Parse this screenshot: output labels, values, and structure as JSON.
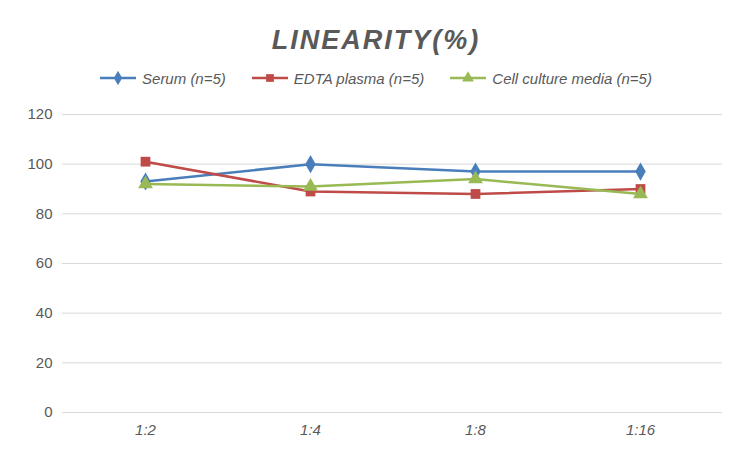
{
  "chart_data": {
    "type": "line",
    "title": "LINEARITY(%)",
    "categories": [
      "1:2",
      "1:4",
      "1:8",
      "1:16"
    ],
    "series": [
      {
        "name": "Serum (n=5)",
        "color": "#4a7ebb",
        "marker": "diamond",
        "values": [
          93,
          100,
          97,
          97
        ]
      },
      {
        "name": "EDTA plasma (n=5)",
        "color": "#be4b48",
        "marker": "square",
        "values": [
          101,
          89,
          88,
          90
        ]
      },
      {
        "name": "Cell culture media (n=5)",
        "color": "#98b954",
        "marker": "triangle",
        "values": [
          92,
          91,
          94,
          88
        ]
      }
    ],
    "ylim": [
      0,
      120
    ],
    "yticks": [
      0,
      20,
      40,
      60,
      80,
      100,
      120
    ],
    "grid": true,
    "legend": "top"
  }
}
